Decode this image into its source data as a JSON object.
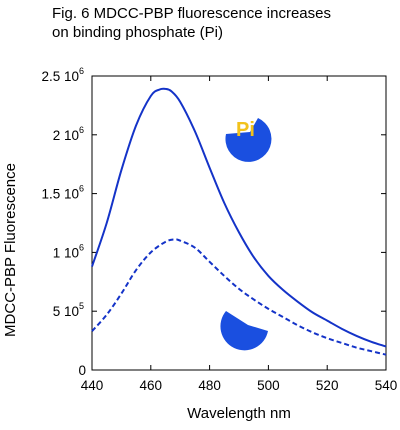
{
  "title": {
    "line1": "Fig. 6  MDCC-PBP fluorescence increases",
    "line2": "on binding phosphate (Pi)"
  },
  "colors": {
    "curve": "#1433c8",
    "protein_fill": "#1a4fe0",
    "pi_text": "#f2c21b",
    "axis": "#000000"
  },
  "icons": {
    "bound": "protein-with-pi-icon",
    "unbound": "protein-without-pi-icon"
  },
  "chart_data": {
    "type": "line",
    "title": "Fig. 6  MDCC-PBP fluorescence increases on binding phosphate (Pi)",
    "xlabel": "Wavelength nm",
    "ylabel": "MDCC-PBP Fluorescence",
    "xlim": [
      440,
      540
    ],
    "ylim": [
      0,
      2500000
    ],
    "grid": false,
    "x_ticks": [
      440,
      460,
      480,
      500,
      520,
      540
    ],
    "y_ticks": [
      {
        "value": 0,
        "label": "0",
        "exp": ""
      },
      {
        "value": 500000,
        "label": "5 10",
        "exp": "5"
      },
      {
        "value": 1000000,
        "label": "1 10",
        "exp": "6"
      },
      {
        "value": 1500000,
        "label": "1.5 10",
        "exp": "6"
      },
      {
        "value": 2000000,
        "label": "2 10",
        "exp": "6"
      },
      {
        "value": 2500000,
        "label": "2.5 10",
        "exp": "6"
      }
    ],
    "annotations": [
      {
        "text": "Pi",
        "near_series": "bound"
      }
    ],
    "series": [
      {
        "id": "bound",
        "style": "solid",
        "x": [
          440,
          445,
          450,
          455,
          460,
          463,
          465,
          467,
          470,
          475,
          480,
          485,
          490,
          495,
          500,
          505,
          510,
          515,
          520,
          525,
          530,
          535,
          540
        ],
        "y": [
          880000,
          1250000,
          1700000,
          2080000,
          2330000,
          2385000,
          2390000,
          2370000,
          2280000,
          2030000,
          1720000,
          1420000,
          1170000,
          960000,
          800000,
          680000,
          580000,
          490000,
          420000,
          350000,
          290000,
          240000,
          200000
        ]
      },
      {
        "id": "unbound",
        "style": "dashed",
        "x": [
          440,
          445,
          450,
          455,
          460,
          465,
          468,
          470,
          475,
          480,
          485,
          490,
          495,
          500,
          505,
          510,
          515,
          520,
          525,
          530,
          535,
          540
        ],
        "y": [
          330000,
          470000,
          650000,
          850000,
          1000000,
          1090000,
          1110000,
          1100000,
          1040000,
          920000,
          800000,
          690000,
          600000,
          520000,
          450000,
          380000,
          320000,
          270000,
          230000,
          190000,
          160000,
          130000
        ]
      }
    ]
  }
}
